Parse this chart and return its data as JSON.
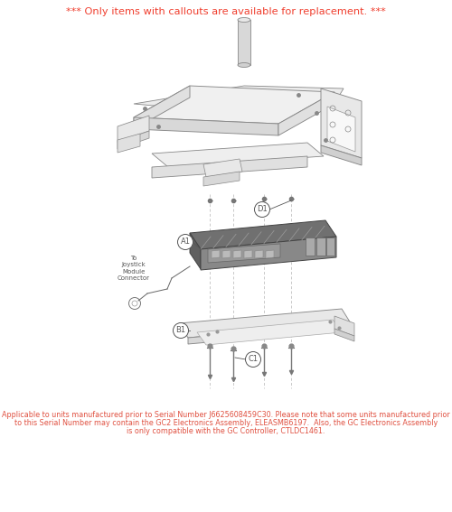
{
  "title": "*** Only items with callouts are available for replacement. ***",
  "title_color": "#f04030",
  "title_fontsize": 8.2,
  "bg_color": "#ffffff",
  "footer_line1": "Applicable to units manufactured prior to Serial Number J6625608459C30. Please note that some units manufactured prior",
  "footer_line2": "to this Serial Number may contain the GC2 Electronics Assembly, ELEASMB6197.  Also, the GC Electronics Assembly",
  "footer_line3": "is only compatible with the GC Controller, CTLDC1461.",
  "footer_color": "#e05040",
  "footer_fontsize": 5.8,
  "callout_color": "#555555",
  "diagram_color": "#888888",
  "light_fill": "#f0f0f0",
  "mid_fill": "#d8d8d8",
  "dark_fill": "#c0c0c0",
  "elec_dark": "#606060",
  "elec_mid": "#808080",
  "elec_light": "#a0a0a0"
}
